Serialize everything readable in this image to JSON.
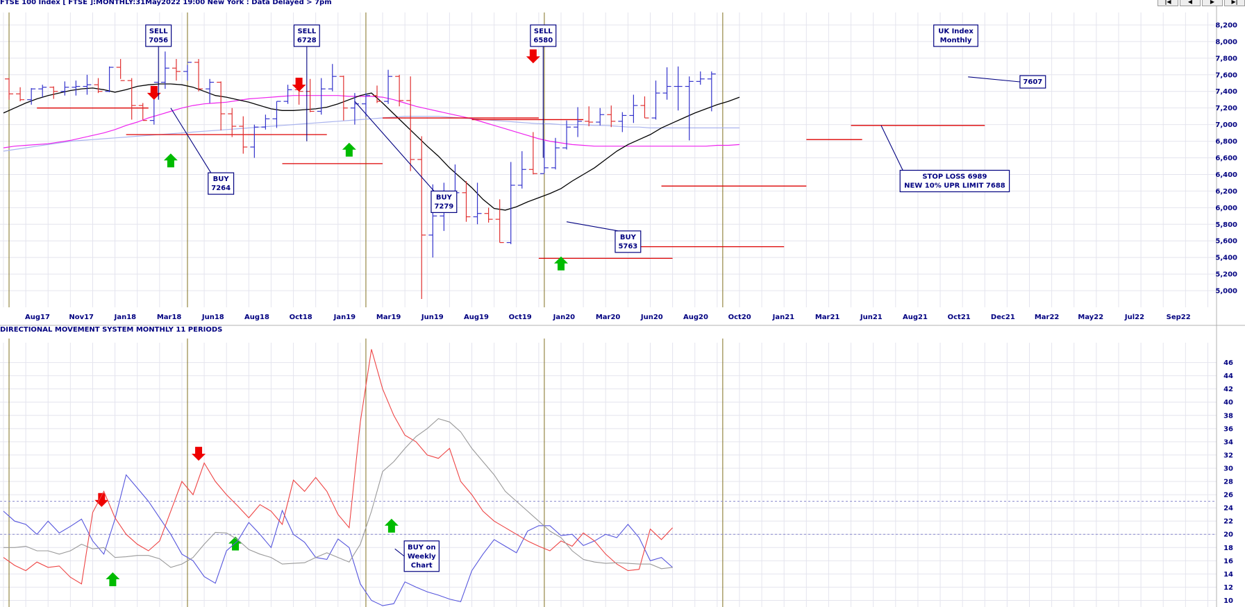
{
  "header": {
    "main_title": "FTSE 100 Index [ FTSE ]:MONTHLY:31May2022 19:00 New York : Data Delayed > 7pm",
    "lower_title": "DIRECTIONAL MOVEMENT SYSTEM MONTHLY 11 PERIODS"
  },
  "nav_buttons": [
    "|◀",
    "◀",
    "▶",
    "▶|"
  ],
  "colors": {
    "background": "#ffffff",
    "grid": "#e4e4ee",
    "separator": "#807020",
    "up_bar": "#3333cc",
    "down_bar": "#e03030",
    "ma_short": "#000000",
    "ma_mid": "#ee22ee",
    "ma_long": "#aab4ee",
    "stop_line": "#dd0000",
    "annotation_text": "#000080",
    "arrow_up": "#00bb00",
    "arrow_down": "#ee0000",
    "di_plus": "#5555dd",
    "di_minus": "#ee4444",
    "adx": "#999999"
  },
  "chart_data": [
    {
      "type": "ohlc",
      "title": "FTSE 100 Index [ FTSE ]:MONTHLY:31May2022 19:00 New York : Data Delayed > 7pm",
      "x_tick_labels": [
        "Aug17",
        "Nov17",
        "Jan18",
        "Mar18",
        "Jun18",
        "Aug18",
        "Oct18",
        "Jan19",
        "Mar19",
        "Jun19",
        "Aug19",
        "Oct19",
        "Jan20",
        "Mar20",
        "Jun20",
        "Aug20",
        "Oct20",
        "Jan21",
        "Mar21",
        "Jun21",
        "Aug21",
        "Oct21",
        "Dec21",
        "Mar22",
        "May22",
        "Jul22",
        "Sep22"
      ],
      "y_ticks": [
        5000,
        5200,
        5400,
        5600,
        5800,
        6000,
        6200,
        6400,
        6600,
        6800,
        7000,
        7200,
        7400,
        7600,
        7800,
        8000,
        8200
      ],
      "y_tick_labels": [
        "5,000",
        "5,200",
        "5,400",
        "5,600",
        "5,800",
        "6,000",
        "6,200",
        "6,400",
        "6,600",
        "6,800",
        "7,000",
        "7,200",
        "7,400",
        "7,600",
        "7,800",
        "8,000",
        "8,200"
      ],
      "ylim": [
        4800,
        8350
      ],
      "grid": true,
      "period_separators_index": [
        0.5,
        16.5,
        32.5,
        48.5,
        64.5
      ],
      "bars": [
        [
          7550,
          7560,
          7300,
          7370
        ],
        [
          7370,
          7450,
          7280,
          7300
        ],
        [
          7300,
          7440,
          7240,
          7430
        ],
        [
          7430,
          7480,
          7330,
          7450
        ],
        [
          7450,
          7460,
          7310,
          7400
        ],
        [
          7400,
          7520,
          7350,
          7450
        ],
        [
          7450,
          7530,
          7350,
          7460
        ],
        [
          7460,
          7600,
          7360,
          7480
        ],
        [
          7480,
          7560,
          7380,
          7400
        ],
        [
          7400,
          7700,
          7390,
          7690
        ],
        [
          7690,
          7790,
          7550,
          7530
        ],
        [
          7530,
          7560,
          7060,
          7230
        ],
        [
          7230,
          7260,
          7060,
          7050
        ],
        [
          7050,
          7340,
          7000,
          7510
        ],
        [
          7510,
          7880,
          7430,
          7680
        ],
        [
          7680,
          7790,
          7530,
          7640
        ],
        [
          7640,
          7720,
          7530,
          7750
        ],
        [
          7750,
          7790,
          7400,
          7430
        ],
        [
          7430,
          7550,
          7260,
          7510
        ],
        [
          7510,
          7520,
          6930,
          7130
        ],
        [
          7130,
          7200,
          6850,
          6980
        ],
        [
          6980,
          7100,
          6650,
          6730
        ],
        [
          6730,
          7000,
          6600,
          6970
        ],
        [
          6970,
          7120,
          6940,
          7070
        ],
        [
          7070,
          7280,
          6960,
          7280
        ],
        [
          7280,
          7480,
          7250,
          7420
        ],
        [
          7420,
          7450,
          7240,
          7400
        ],
        [
          7400,
          7550,
          7150,
          7160
        ],
        [
          7160,
          7560,
          7120,
          7430
        ],
        [
          7430,
          7730,
          7400,
          7580
        ],
        [
          7580,
          7590,
          7050,
          7200
        ],
        [
          7200,
          7380,
          7000,
          7250
        ],
        [
          7250,
          7380,
          7090,
          7350
        ],
        [
          7350,
          7470,
          7260,
          7280
        ],
        [
          7280,
          7660,
          7250,
          7580
        ],
        [
          7580,
          7600,
          7220,
          7290
        ],
        [
          7290,
          7580,
          6440,
          6580
        ],
        [
          6580,
          6860,
          4900,
          5670
        ],
        [
          5670,
          6280,
          5400,
          5900
        ],
        [
          5900,
          6300,
          5720,
          6170
        ],
        [
          6170,
          6520,
          6030,
          6180
        ],
        [
          6180,
          6320,
          5830,
          5890
        ],
        [
          5890,
          6300,
          5800,
          5930
        ],
        [
          5930,
          6000,
          5820,
          5860
        ],
        [
          5860,
          6100,
          5580,
          5580
        ],
        [
          5580,
          6550,
          5560,
          6270
        ],
        [
          6270,
          6680,
          6230,
          6460
        ],
        [
          6460,
          6910,
          6400,
          6410
        ],
        [
          6410,
          6800,
          6420,
          6480
        ],
        [
          6480,
          6840,
          6460,
          6720
        ],
        [
          6720,
          7050,
          6700,
          6970
        ],
        [
          6970,
          7210,
          6850,
          7040
        ],
        [
          7040,
          7220,
          6980,
          7030
        ],
        [
          7030,
          7200,
          6990,
          7120
        ],
        [
          7120,
          7230,
          6970,
          7040
        ],
        [
          7040,
          7150,
          6910,
          7110
        ],
        [
          7110,
          7360,
          7020,
          7230
        ],
        [
          7230,
          7340,
          7080,
          7080
        ],
        [
          7080,
          7530,
          7060,
          7380
        ],
        [
          7380,
          7690,
          7300,
          7460
        ],
        [
          7460,
          7700,
          7170,
          7460
        ],
        [
          7460,
          7580,
          6810,
          7520
        ],
        [
          7520,
          7640,
          7480,
          7550
        ],
        [
          7550,
          7640,
          7160,
          7610
        ]
      ],
      "series": [
        {
          "values": [
            7140,
            7200,
            7260,
            7310,
            7350,
            7380,
            7410,
            7430,
            7440,
            7420,
            7390,
            7420,
            7460,
            7480,
            7490,
            7490,
            7480,
            7450,
            7400,
            7350,
            7330,
            7300,
            7270,
            7230,
            7190,
            7170,
            7170,
            7180,
            7190,
            7210,
            7250,
            7300,
            7350,
            7380,
            7260,
            7130,
            7000,
            6870,
            6740,
            6620,
            6480,
            6360,
            6240,
            6100,
            5990,
            5970,
            6010,
            6070,
            6120,
            6170,
            6230,
            6320,
            6400,
            6480,
            6580,
            6680,
            6760,
            6820,
            6880,
            6960,
            7020,
            7080,
            7140,
            7190,
            7240,
            7280,
            7330
          ]
        },
        {
          "values": [
            6720,
            6740,
            6750,
            6760,
            6770,
            6790,
            6810,
            6840,
            6870,
            6900,
            6940,
            6990,
            7030,
            7080,
            7120,
            7160,
            7200,
            7230,
            7250,
            7260,
            7270,
            7290,
            7310,
            7320,
            7330,
            7340,
            7350,
            7350,
            7350,
            7350,
            7350,
            7340,
            7340,
            7340,
            7330,
            7300,
            7260,
            7220,
            7190,
            7160,
            7130,
            7100,
            7070,
            7030,
            6990,
            6950,
            6910,
            6870,
            6830,
            6800,
            6780,
            6760,
            6750,
            6740,
            6740,
            6740,
            6740,
            6740,
            6740,
            6740,
            6740,
            6740,
            6740,
            6740,
            6750,
            6750,
            6760
          ]
        },
        {
          "values": [
            6680,
            6700,
            6720,
            6740,
            6760,
            6780,
            6800,
            6810,
            6820,
            6830,
            6840,
            6850,
            6860,
            6870,
            6880,
            6890,
            6900,
            6910,
            6920,
            6930,
            6940,
            6950,
            6960,
            6970,
            6980,
            6990,
            7000,
            7010,
            7020,
            7030,
            7040,
            7050,
            7060,
            7070,
            7080,
            7090,
            7100,
            7100,
            7100,
            7100,
            7090,
            7080,
            7070,
            7060,
            7050,
            7040,
            7030,
            7020,
            7010,
            7010,
            7000,
            7000,
            7000,
            6990,
            6990,
            6980,
            6970,
            6970,
            6960,
            6960,
            6960,
            6960,
            6960,
            6960,
            6960,
            6960,
            6960
          ]
        }
      ],
      "stop_lines": [
        {
          "y": 7200,
          "from": 3,
          "to": 13
        },
        {
          "y": 6880,
          "from": 11,
          "to": 29
        },
        {
          "y": 6530,
          "from": 25,
          "to": 34
        },
        {
          "y": 7080,
          "from": 34,
          "to": 48
        },
        {
          "y": 7060,
          "from": 42,
          "to": 52
        },
        {
          "y": 5390,
          "from": 48,
          "to": 60
        },
        {
          "y": 5530,
          "from": 56,
          "to": 70
        },
        {
          "y": 6260,
          "from": 59,
          "to": 72
        },
        {
          "y": 6820,
          "from": 72,
          "to": 77
        },
        {
          "y": 6990,
          "from": 76,
          "to": 88
        }
      ],
      "arrows": [
        {
          "dir": "down",
          "i": 13.5,
          "y": 7390
        },
        {
          "dir": "up",
          "i": 15,
          "y": 6560
        },
        {
          "dir": "down",
          "i": 26.5,
          "y": 7490
        },
        {
          "dir": "up",
          "i": 31,
          "y": 6690
        },
        {
          "dir": "down",
          "i": 47.5,
          "y": 7830
        },
        {
          "dir": "up",
          "i": 50,
          "y": 5320
        }
      ],
      "annotations": [
        {
          "lines": [
            "SELL",
            "7056"
          ],
          "i": 13.9,
          "y": 8200,
          "target": {
            "i": 13.9,
            "y": 7300
          }
        },
        {
          "lines": [
            "BUY",
            "7264"
          ],
          "i": 19.5,
          "y": 6420,
          "target": {
            "i": 15,
            "y": 7200
          }
        },
        {
          "lines": [
            "SELL",
            "6728"
          ],
          "i": 27.2,
          "y": 8200,
          "target": {
            "i": 27.2,
            "y": 6800
          }
        },
        {
          "lines": [
            "BUY",
            "7279"
          ],
          "i": 39.5,
          "y": 6200,
          "target": {
            "i": 31.5,
            "y": 7280
          }
        },
        {
          "lines": [
            "SELL",
            "6580"
          ],
          "i": 48.4,
          "y": 8200,
          "target": {
            "i": 48.4,
            "y": 6600
          }
        },
        {
          "lines": [
            "BUY",
            "5763"
          ],
          "i": 56,
          "y": 5720,
          "target": {
            "i": 50.5,
            "y": 5830
          }
        },
        {
          "lines": [
            "UK Index",
            "Monthly"
          ],
          "i": 85.4,
          "y": 8200
        },
        {
          "lines": [
            "7607"
          ],
          "i": 92.3,
          "y": 7590,
          "target": {
            "i": 86.5,
            "y": 7575
          }
        },
        {
          "lines": [
            "STOP LOSS 6989",
            "NEW 10% UPR LIMIT 7688"
          ],
          "i": 85.3,
          "y": 6450,
          "target": {
            "i": 78.7,
            "y": 6990
          }
        }
      ]
    },
    {
      "type": "line",
      "title": "DIRECTIONAL MOVEMENT SYSTEM MONTHLY 11 PERIODS",
      "y_ticks": [
        10,
        12,
        14,
        16,
        18,
        20,
        22,
        24,
        26,
        28,
        30,
        32,
        34,
        36,
        38,
        40,
        42,
        44,
        46
      ],
      "ylim": [
        9,
        49
      ],
      "grid": true,
      "reference_lines": [
        20,
        25
      ],
      "series": [
        {
          "values": [
            23.5,
            22,
            21.5,
            20,
            22,
            20.2,
            21.2,
            22.3,
            19,
            17,
            22.3,
            29,
            27,
            25,
            22.5,
            20,
            17,
            16,
            13.6,
            12.6,
            17.5,
            19,
            21.8,
            20,
            18,
            23.6,
            20,
            18.8,
            16.5,
            16.2,
            19.3,
            18,
            12.5,
            10,
            9.2,
            9.5,
            12.8,
            12,
            11.3,
            10.8,
            10.2,
            9.8,
            14.5,
            17,
            19.2,
            18.2,
            17.2,
            20.5,
            21.3,
            21.3,
            19.8,
            20,
            18.3,
            19,
            20,
            19.5,
            21.5,
            19.5,
            16,
            16.5,
            15
          ]
        },
        {
          "values": [
            16.5,
            15.3,
            14.5,
            15.8,
            15,
            15.2,
            13.5,
            12.5,
            23.3,
            26.5,
            22.5,
            20,
            18.5,
            17.5,
            19,
            23.5,
            28,
            26,
            30.8,
            28,
            26,
            24.3,
            22.5,
            24.5,
            23.5,
            21.5,
            28.2,
            26.5,
            28.6,
            26.5,
            23,
            21,
            37,
            48,
            42,
            38,
            35,
            34,
            32,
            31.5,
            33,
            28,
            26,
            23.5,
            22,
            21,
            20,
            19,
            18.2,
            17.5,
            19,
            18.2,
            20.2,
            19,
            17,
            15.5,
            14.5,
            14.7,
            20.8,
            19.2,
            21
          ]
        },
        {
          "values": [
            18,
            18,
            18.2,
            17.5,
            17.5,
            17,
            17.5,
            18.5,
            17.8,
            18,
            16.5,
            16.6,
            16.8,
            16.8,
            16.3,
            15,
            15.5,
            16.5,
            18.5,
            20.3,
            20.2,
            19.2,
            17.7,
            17,
            16.5,
            15.5,
            15.6,
            15.7,
            16.5,
            17.2,
            16.5,
            15.8,
            18.5,
            23.5,
            29.5,
            31,
            33,
            34.8,
            36,
            37.5,
            37,
            35.5,
            33,
            31,
            29,
            26.5,
            25,
            23.5,
            22,
            20.5,
            19.5,
            17.5,
            16.2,
            15.8,
            15.6,
            15.7,
            15.6,
            15.5,
            15.5,
            14.8,
            15
          ]
        }
      ],
      "arrows": [
        {
          "dir": "down",
          "i": 8.8,
          "y": 25.3
        },
        {
          "dir": "up",
          "i": 9.8,
          "y": 13.1
        },
        {
          "dir": "down",
          "i": 17.5,
          "y": 32.3
        },
        {
          "dir": "up",
          "i": 20.8,
          "y": 18.5
        },
        {
          "dir": "up",
          "i": 34.8,
          "y": 21.2
        }
      ],
      "annotations": [
        {
          "lines": [
            "BUY on",
            "Weekly",
            "Chart"
          ],
          "i": 37.5,
          "y": 19,
          "target": {
            "i": 35.1,
            "y": 17.8
          }
        }
      ]
    }
  ]
}
